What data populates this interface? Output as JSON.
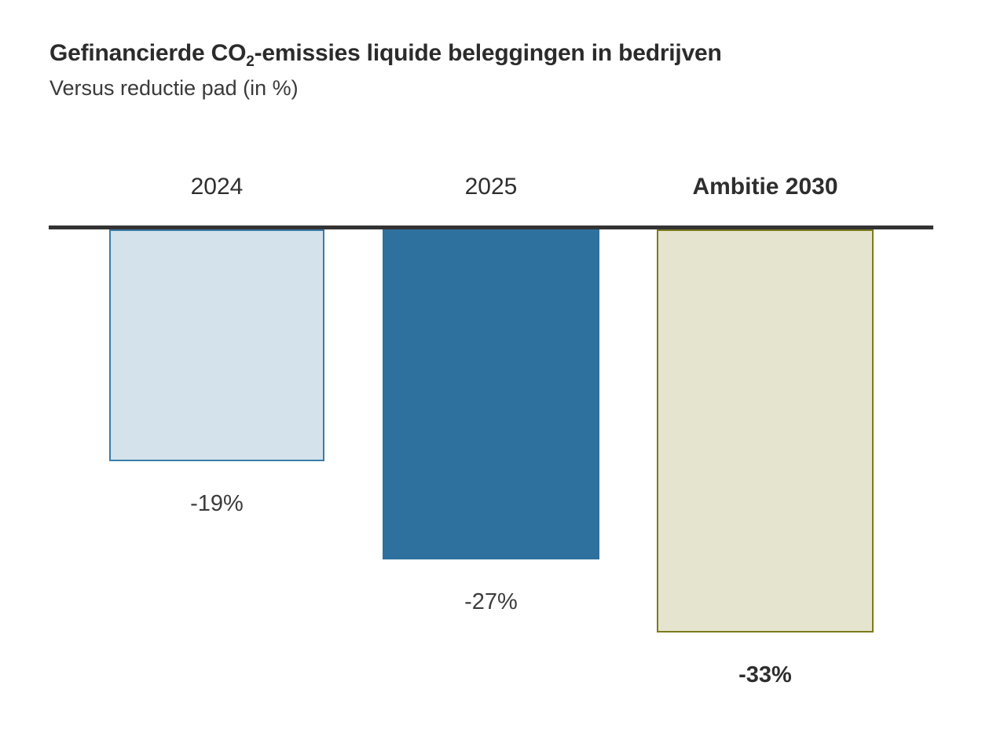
{
  "header": {
    "title_prefix": "Gefinancierde CO",
    "title_sub": "2",
    "title_suffix": "-emissies liquide beleggingen in bedrijven",
    "subtitle": "Versus reductie pad (in %)"
  },
  "chart_data": {
    "type": "bar",
    "title": "Gefinancierde CO2-emissies liquide beleggingen in bedrijven",
    "subtitle": "Versus reductie pad (in %)",
    "orientation": "vertical-downward-from-zero-baseline",
    "xlabel": "",
    "ylabel": "",
    "ylim": [
      -35,
      0
    ],
    "grid": false,
    "legend": "none",
    "categories": [
      "2024",
      "2025",
      "Ambitie 2030"
    ],
    "values": [
      -19,
      -27,
      -33
    ],
    "bars": [
      {
        "category": "2024",
        "value": -19,
        "label": "-19%",
        "fill": "#d4e2ec",
        "border": "#3a7ca8",
        "emphasis": false
      },
      {
        "category": "2025",
        "value": -27,
        "label": "-27%",
        "fill": "#2e719e",
        "border": null,
        "emphasis": false
      },
      {
        "category": "Ambitie 2030",
        "value": -33,
        "label": "-33%",
        "fill": "#e4e4cf",
        "border": "#7d7b1c",
        "emphasis": true
      }
    ],
    "colors": {
      "baseline": "#333333",
      "title_text": "#2b2b2b",
      "label_text": "#3c3c3c",
      "background": "#ffffff"
    }
  }
}
